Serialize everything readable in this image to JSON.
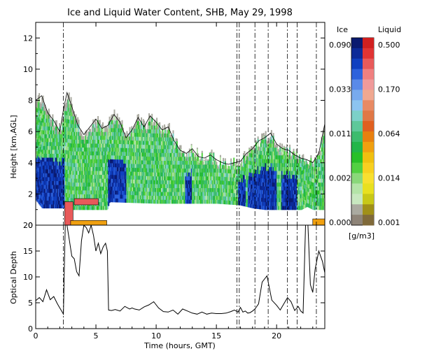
{
  "chart_data": [
    {
      "type": "heatmap",
      "title": "Ice and Liquid Water Content, SHB, May 29, 1998",
      "xlabel": "",
      "ylabel": "Height [km,AGL]",
      "xlim": [
        0,
        24
      ],
      "ylim": [
        0,
        13
      ],
      "yticks": [
        "0",
        "2",
        "4",
        "6",
        "8",
        "10",
        "12"
      ],
      "cloud_top_profile": {
        "x": [
          0,
          0.5,
          1,
          1.5,
          2,
          2.3,
          2.6,
          3,
          3.5,
          4,
          4.5,
          5,
          5.5,
          6,
          6.5,
          7,
          7.5,
          8,
          8.5,
          9,
          9.5,
          10,
          10.5,
          11,
          11.5,
          12,
          12.5,
          13,
          13.5,
          14,
          14.5,
          15,
          15.5,
          16,
          16.5,
          17,
          17.5,
          18,
          18.5,
          19,
          19.5,
          20,
          20.5,
          21,
          21.5,
          22,
          22.5,
          23,
          23.5,
          24
        ],
        "y": [
          8.0,
          8.3,
          7.2,
          6.7,
          6.0,
          7.4,
          8.5,
          7.6,
          6.4,
          5.8,
          6.3,
          6.8,
          6.2,
          6.4,
          7.1,
          6.6,
          5.6,
          6.1,
          6.9,
          6.3,
          7.0,
          6.6,
          6.1,
          6.3,
          5.4,
          4.8,
          4.6,
          4.9,
          4.4,
          4.3,
          4.5,
          4.2,
          4.0,
          3.9,
          4.0,
          4.1,
          4.6,
          4.9,
          5.4,
          5.6,
          5.9,
          5.2,
          4.9,
          4.8,
          4.5,
          4.3,
          4.2,
          4.0,
          4.6,
          6.5
        ]
      },
      "cloud_base_profile": {
        "x": [
          0,
          0.5,
          1,
          2,
          2.4,
          3,
          5.9,
          6.1,
          10,
          15,
          16.9,
          18,
          19,
          20,
          21,
          22,
          22.5,
          23,
          24
        ],
        "y": [
          1.6,
          1.1,
          1.1,
          1.1,
          1.1,
          1.0,
          1.0,
          1.5,
          1.4,
          1.4,
          1.3,
          1.1,
          1.0,
          1.0,
          1.0,
          1.0,
          1.2,
          1.0,
          1.0
        ]
      },
      "thick_ice_segments": [
        {
          "x0": 0.0,
          "x1": 2.4,
          "note": "blue band"
        },
        {
          "x0": 6.0,
          "x1": 7.5
        },
        {
          "x0": 12.4,
          "x1": 13.0
        },
        {
          "x0": 16.8,
          "x1": 17.4
        },
        {
          "x0": 17.6,
          "x1": 20.0
        },
        {
          "x0": 20.4,
          "x1": 21.7
        }
      ],
      "liquid_cells": [
        {
          "x0": 2.4,
          "x1": 3.1,
          "y0": 0.0,
          "y1": 1.5,
          "level": "high"
        },
        {
          "x0": 3.2,
          "x1": 5.2,
          "y0": 1.3,
          "y1": 1.7,
          "level": "high"
        },
        {
          "x0": 2.9,
          "x1": 5.9,
          "y0": 0.0,
          "y1": 0.3,
          "level": "low"
        },
        {
          "x0": 23.0,
          "x1": 24.0,
          "y0": 0.0,
          "y1": 0.4,
          "level": "low"
        }
      ],
      "vertical_lines": [
        2.3,
        16.7,
        16.9,
        18.2,
        19.3,
        20.9,
        21.7,
        23.3
      ],
      "colorbar": {
        "unit": "[g/m3]",
        "ice_label": "Ice",
        "liquid_label": "Liquid",
        "ice_ticks": [
          "0.090",
          "0.033",
          "0.011",
          "0.002",
          "0.000"
        ],
        "liquid_ticks": [
          "0.500",
          "0.170",
          "0.064",
          "0.014",
          "0.001"
        ],
        "ice_colors": [
          "#0a1a70",
          "#0c2a98",
          "#1040c0",
          "#2d62dc",
          "#5a8ae8",
          "#78aaee",
          "#8cc4f0",
          "#7cd0c8",
          "#5ec89a",
          "#3cbc6e",
          "#22b64a",
          "#28c028",
          "#52d042",
          "#8ad87a",
          "#b4e4a8",
          "#c8e8c0",
          "#aaaaa0",
          "#8e8478"
        ],
        "liquid_colors": [
          "#d02020",
          "#e03434",
          "#e85a5a",
          "#f08080",
          "#f09a9a",
          "#f0a890",
          "#e88a64",
          "#e07846",
          "#e06020",
          "#e88010",
          "#f0a010",
          "#f0c010",
          "#f8d020",
          "#f8e030",
          "#e8e020",
          "#c8c818",
          "#a09018",
          "#806a3a"
        ]
      }
    },
    {
      "type": "line",
      "xlabel": "Time (hours, GMT)",
      "ylabel": "Optical Depth",
      "xlim": [
        0,
        24
      ],
      "ylim": [
        0,
        20
      ],
      "xticks": [
        "0",
        "5",
        "10",
        "15",
        "20"
      ],
      "yticks": [
        "0",
        "5",
        "10",
        "15",
        "20"
      ],
      "series": [
        {
          "x": [
            0,
            0.3,
            0.6,
            0.9,
            1.2,
            1.5,
            1.8,
            2.0,
            2.2,
            2.3,
            2.45,
            2.6,
            2.8,
            3.0,
            3.2,
            3.4,
            3.6,
            3.8,
            4.0,
            4.2,
            4.4,
            4.6,
            4.8,
            5.0,
            5.2,
            5.4,
            5.6,
            5.8,
            5.95,
            6.05,
            6.3,
            6.6,
            7.0,
            7.4,
            7.8,
            8.0,
            8.2,
            8.6,
            9.0,
            9.4,
            9.8,
            10.2,
            10.6,
            11.0,
            11.4,
            11.8,
            12.2,
            12.6,
            13.0,
            13.4,
            13.8,
            14.2,
            14.6,
            15.0,
            15.4,
            15.8,
            16.2,
            16.5,
            16.8,
            17.0,
            17.2,
            17.4,
            17.6,
            17.8,
            18.0,
            18.2,
            18.5,
            18.8,
            19.2,
            19.6,
            20.0,
            20.3,
            20.6,
            20.9,
            21.2,
            21.5,
            21.8,
            22.0,
            22.2,
            22.4,
            22.6,
            22.8,
            23.0,
            23.2,
            23.5,
            23.8,
            24.0
          ],
          "y": [
            5.4,
            6.0,
            5.2,
            7.5,
            5.6,
            6.2,
            4.8,
            4.0,
            3.2,
            2.8,
            20,
            20,
            17,
            14,
            13.5,
            11,
            10.2,
            17,
            20,
            19.5,
            18.5,
            20,
            18,
            15,
            16.5,
            14.5,
            15.8,
            16.5,
            15,
            3.6,
            3.5,
            3.7,
            3.4,
            4.3,
            3.8,
            4.0,
            3.8,
            3.6,
            4.2,
            4.6,
            5.2,
            4.0,
            3.3,
            3.2,
            3.6,
            2.8,
            3.8,
            3.4,
            3.0,
            2.8,
            3.2,
            2.8,
            3.0,
            2.9,
            2.9,
            3.0,
            3.3,
            3.6,
            3.2,
            4.1,
            3.2,
            3.4,
            3.0,
            3.1,
            3.4,
            3.8,
            4.8,
            9.0,
            10.2,
            5.5,
            4.5,
            3.6,
            4.8,
            6.0,
            5.2,
            3.5,
            4.3,
            3.4,
            3.0,
            20,
            20,
            8.5,
            7.0,
            11.5,
            15,
            13,
            10.8
          ]
        }
      ]
    }
  ]
}
